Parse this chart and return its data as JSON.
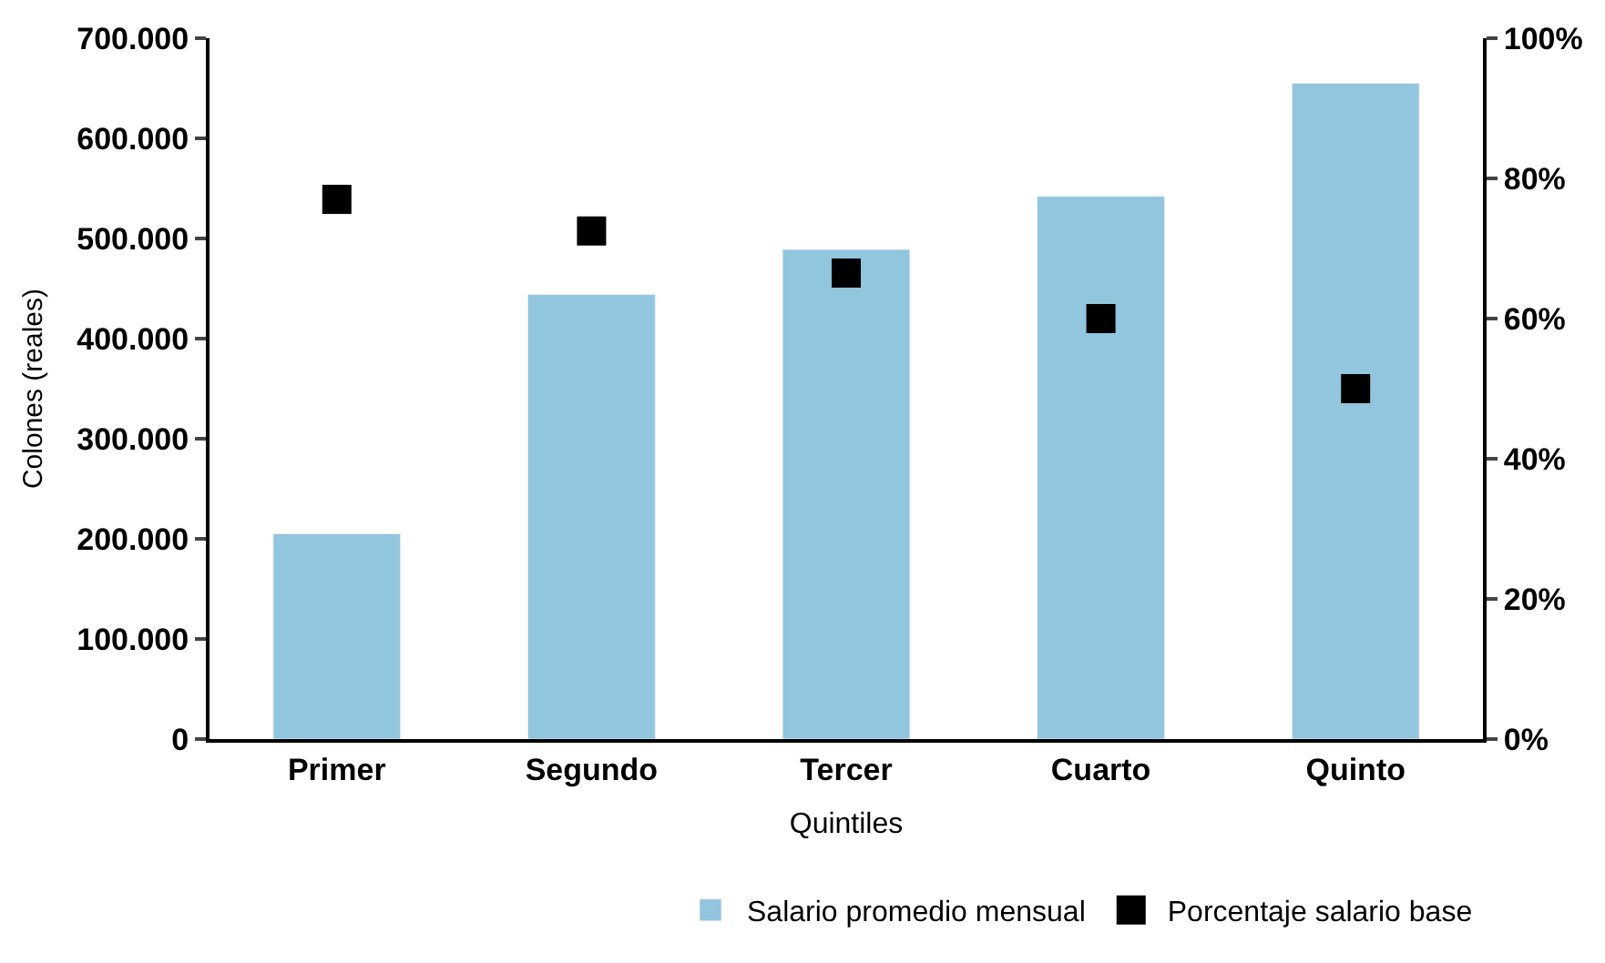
{
  "chart_data": {
    "type": "bar",
    "xlabel": "Quintiles",
    "ylabel": "Colones (reales)",
    "categories": [
      "Primer",
      "Segundo",
      "Tercer",
      "Cuarto",
      "Quinto"
    ],
    "series": [
      {
        "name": "Salario promedio mensual",
        "color": "#92c5de",
        "values": [
          205000,
          444000,
          489000,
          542000,
          655000
        ]
      },
      {
        "name": "Porcentaje salario base",
        "type": "scatter",
        "axis": "y2",
        "color": "#000000",
        "values": [
          77,
          72.5,
          66.5,
          60,
          50
        ]
      }
    ],
    "ylim": [
      0,
      700000
    ],
    "yticks": [
      {
        "value": 0,
        "label": "0"
      },
      {
        "value": 100000,
        "label": "100.000"
      },
      {
        "value": 200000,
        "label": "200.000"
      },
      {
        "value": 300000,
        "label": "300.000"
      },
      {
        "value": 400000,
        "label": "400.000"
      },
      {
        "value": 500000,
        "label": "500.000"
      },
      {
        "value": 600000,
        "label": "600.000"
      },
      {
        "value": 700000,
        "label": "700.000"
      }
    ],
    "y2lim": [
      0,
      100
    ],
    "y2ticks": [
      {
        "value": 0,
        "label": "0%"
      },
      {
        "value": 20,
        "label": "20%"
      },
      {
        "value": 40,
        "label": "40%"
      },
      {
        "value": 60,
        "label": "60%"
      },
      {
        "value": 80,
        "label": "80%"
      },
      {
        "value": 100,
        "label": "100%"
      }
    ],
    "marker": "square",
    "legend": "bottom right"
  }
}
